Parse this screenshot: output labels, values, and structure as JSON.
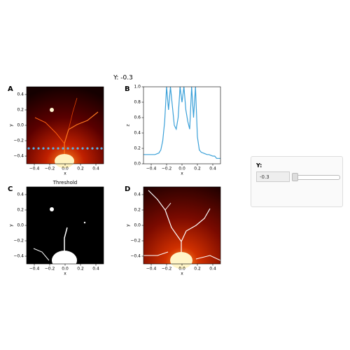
{
  "title": "Y: -0.3",
  "panels": [
    {
      "label": "A",
      "xlabel": "x",
      "ylabel": "y",
      "xlim": [
        -0.5,
        0.5
      ],
      "ylim": [
        -0.5,
        0.5
      ],
      "xticks": [
        {
          "value": -0.4,
          "label": "−0.4"
        },
        {
          "value": -0.2,
          "label": "−0.2"
        },
        {
          "value": 0,
          "label": "0.0"
        },
        0.2,
        0.4
      ],
      "yticks": [
        {
          "value": -0.4,
          "label": "−0.4"
        },
        {
          "value": -0.2,
          "label": "−0.2"
        },
        {
          "value": 0,
          "label": "0.0"
        },
        0.2,
        0.4
      ]
    },
    {
      "label": "B",
      "type": "line",
      "xlabel": "x",
      "ylabel": "z",
      "color": "#3aa0d8",
      "xlim": [
        -0.5,
        0.5
      ],
      "ylim": [
        0,
        1
      ],
      "xticks": [
        {
          "value": -0.4,
          "label": "−0.4"
        },
        {
          "value": -0.2,
          "label": "−0.2"
        },
        {
          "value": 0,
          "label": "0.0"
        },
        0.2,
        0.4
      ],
      "yticks": [
        {
          "value": 0,
          "label": "0.0"
        },
        0.2,
        0.4,
        0.6,
        0.8,
        {
          "value": 1,
          "label": "1.0"
        }
      ],
      "x": [
        -0.5,
        -0.475,
        -0.45,
        -0.425,
        -0.4,
        -0.375,
        -0.35,
        -0.325,
        -0.3,
        -0.275,
        -0.25,
        -0.225,
        -0.2,
        -0.175,
        -0.15,
        -0.125,
        -0.1,
        -0.075,
        -0.05,
        -0.025,
        0,
        0.025,
        0.05,
        0.075,
        0.1,
        0.125,
        0.15,
        0.175,
        0.2,
        0.225,
        0.25,
        0.275,
        0.3,
        0.325,
        0.35,
        0.375,
        0.4,
        0.425,
        0.45,
        0.475,
        0.5
      ],
      "values": [
        0.12,
        0.12,
        0.12,
        0.12,
        0.12,
        0.12,
        0.12,
        0.13,
        0.14,
        0.18,
        0.3,
        0.55,
        1,
        0.7,
        1,
        0.75,
        0.5,
        0.45,
        0.6,
        1,
        0.8,
        1,
        0.7,
        0.55,
        0.45,
        1,
        0.6,
        1,
        0.35,
        0.18,
        0.15,
        0.14,
        0.13,
        0.12,
        0.12,
        0.11,
        0.1,
        0.1,
        0.07,
        0.07,
        0.07
      ]
    },
    {
      "label": "C",
      "title": "Threshold",
      "xlabel": "x",
      "ylabel": "y",
      "xlim": [
        -0.5,
        0.5
      ],
      "ylim": [
        -0.5,
        0.5
      ],
      "xticks": [
        {
          "value": -0.4,
          "label": "−0.4"
        },
        {
          "value": -0.2,
          "label": "−0.2"
        },
        {
          "value": 0,
          "label": "0.0"
        },
        0.2,
        0.4
      ],
      "yticks": [
        {
          "value": -0.4,
          "label": "−0.4"
        },
        {
          "value": -0.2,
          "label": "−0.2"
        },
        {
          "value": 0,
          "label": "0.0"
        },
        0.2,
        0.4
      ]
    },
    {
      "label": "D",
      "xlabel": "x",
      "ylabel": "y",
      "xlim": [
        -0.5,
        0.5
      ],
      "ylim": [
        -0.5,
        0.5
      ],
      "xticks": [
        {
          "value": -0.4,
          "label": "−0.4"
        },
        {
          "value": -0.2,
          "label": "−0.2"
        },
        {
          "value": 0,
          "label": "0.0"
        },
        0.2,
        0.4
      ],
      "yticks": [
        {
          "value": -0.4,
          "label": "−0.4"
        },
        {
          "value": -0.2,
          "label": "−0.2"
        },
        {
          "value": 0,
          "label": "0.0"
        },
        0.2,
        0.4
      ]
    }
  ],
  "widget": {
    "label": "Y:",
    "value": "-0.3"
  }
}
